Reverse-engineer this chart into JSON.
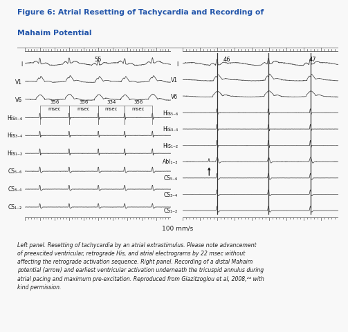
{
  "title_line1": "Figure 6: Atrial Resetting of Tachycardia and Recording of",
  "title_line2": "Mahaim Potential",
  "title_color": "#2255aa",
  "bg_color": "#f8f8f8",
  "caption": "Left panel. Resetting of tachycardia by an atrial extrastimulus. Please note advancement\nof preexcited ventricular, retrograde His, and atrial electrograms by 22 msec without\naffecting the retrograde activation sequence. Right panel. Recording of a distal Mahaim\npotential (arrow) and earliest ventricular activation underneath the tricuspid annulus during\natrial pacing and maximum pre-excitation. Reproduced from Giazitzoglou et al, 2008,²⁴ with\nkind permission.",
  "speed_label": "100 mm/s",
  "left_labels": [
    "I",
    "V1",
    "V6",
    "His₅₋₆",
    "His₃₋₄",
    "His₁₋₂",
    "CS₅₋₆",
    "CS₃₋₄",
    "CS₁₋₂"
  ],
  "right_labels": [
    "I",
    "V1",
    "V6",
    "His₅₋₆",
    "His₃₋₄",
    "His₁₋₂",
    "Abl₁₋₂",
    "CS₅₋₆",
    "CS₃₋₄",
    "CS₁₋₂"
  ],
  "left_interval_vals": [
    "356",
    "356",
    "334",
    "356"
  ],
  "left_top_label": "55",
  "right_top_labels": [
    "46",
    "47"
  ],
  "trace_color": "#444444",
  "sep_color": "#cccccc",
  "title_sep_color": "#999999"
}
